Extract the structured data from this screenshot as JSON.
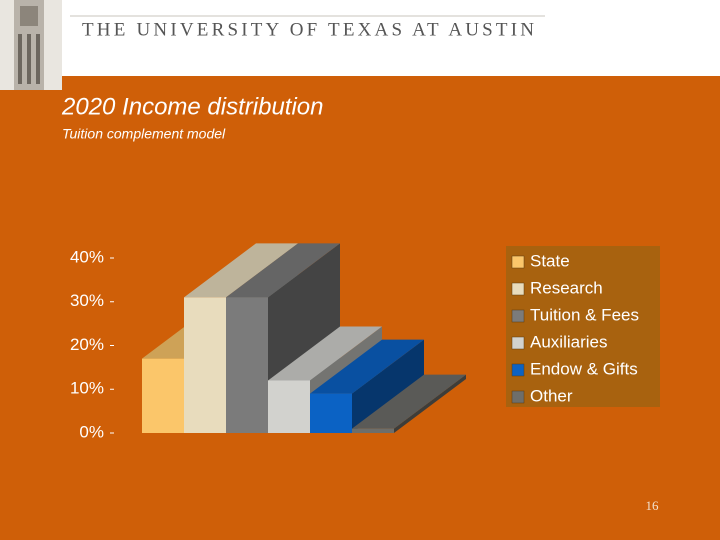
{
  "header": "THE UNIVERSITY OF TEXAS AT AUSTIN",
  "page_number": "16",
  "chart_data": {
    "type": "bar3d",
    "title": "2020 Income distribution",
    "subtitle": "Tuition complement model",
    "categories": [
      "State",
      "Research",
      "Tuition & Fees",
      "Auxiliaries",
      "Endow & Gifts",
      "Other"
    ],
    "values": [
      17,
      31,
      31,
      12,
      9,
      1
    ],
    "colors": [
      "#fbc66a",
      "#e8dcbd",
      "#7b7b7b",
      "#d2d2ce",
      "#0b62c4",
      "#6e6e6a"
    ],
    "ylim": [
      0,
      40
    ],
    "yticks": [
      {
        "value": 0,
        "label": "0%"
      },
      {
        "value": 10,
        "label": "10%"
      },
      {
        "value": 20,
        "label": "20%"
      },
      {
        "value": 30,
        "label": "30%"
      },
      {
        "value": 40,
        "label": "40%"
      }
    ],
    "grid": false,
    "legend": "right"
  }
}
